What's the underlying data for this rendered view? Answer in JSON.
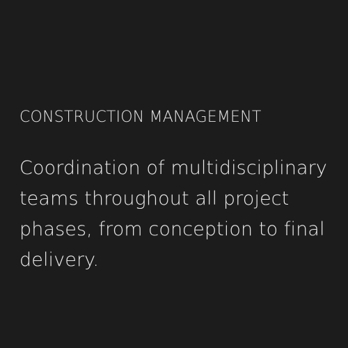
{
  "card": {
    "title": "CONSTRUCTION MANAGEMENT",
    "description": "Coordination of multidisciplinary teams throughout all project phases, from conception to final delivery."
  }
}
